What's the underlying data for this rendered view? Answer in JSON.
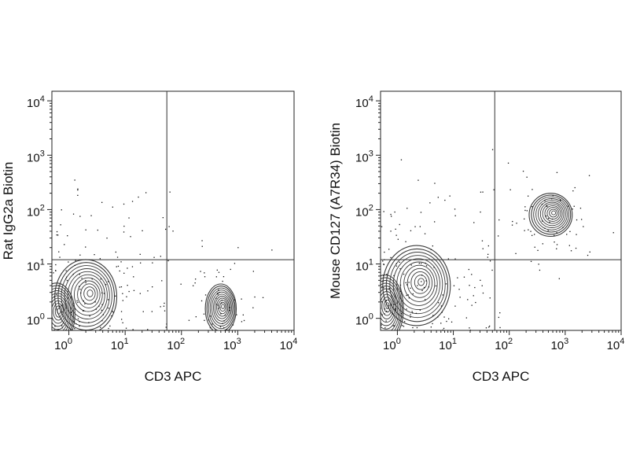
{
  "chart_data": [
    {
      "type": "scatter",
      "subtype": "flow cytometry contour plot with quadrant gates",
      "title": "",
      "xlabel": "CD3 APC",
      "ylabel": "Rat IgG2a Biotin",
      "x_scale": "log",
      "y_scale": "log",
      "xlim": [
        0.5,
        10000
      ],
      "ylim": [
        0.6,
        15000
      ],
      "x_tick_labels": [
        "10^0",
        "10^1",
        "10^2",
        "10^3",
        "10^4"
      ],
      "y_tick_labels": [
        "10^0",
        "10^1",
        "10^2",
        "10^3",
        "10^4"
      ],
      "x_ticks": [
        1,
        10,
        100,
        1000,
        10000
      ],
      "y_ticks": [
        1,
        10,
        100,
        1000,
        10000
      ],
      "gate": {
        "x": 55,
        "y": 12
      },
      "populations": [
        {
          "x": 2,
          "y": 2.5,
          "spread": [
            1.0,
            1.2
          ]
        },
        {
          "x": 0.6,
          "y": 1.2,
          "spread": [
            0.6,
            1.0
          ]
        },
        {
          "x": 500,
          "y": 1.5,
          "spread": [
            0.5,
            0.8
          ]
        }
      ]
    },
    {
      "type": "scatter",
      "subtype": "flow cytometry contour plot with quadrant gates",
      "title": "",
      "xlabel": "CD3 APC",
      "ylabel": "Mouse CD127 (A7R34) Biotin",
      "x_scale": "log",
      "y_scale": "log",
      "xlim": [
        0.5,
        10000
      ],
      "ylim": [
        0.6,
        15000
      ],
      "x_tick_labels": [
        "10^0",
        "10^1",
        "10^2",
        "10^3",
        "10^4"
      ],
      "y_tick_labels": [
        "10^0",
        "10^1",
        "10^2",
        "10^3",
        "10^4"
      ],
      "x_ticks": [
        1,
        10,
        100,
        1000,
        10000
      ],
      "y_ticks": [
        1,
        10,
        100,
        1000,
        10000
      ],
      "gate": {
        "x": 55,
        "y": 12
      },
      "populations": [
        {
          "x": 2.2,
          "y": 4,
          "spread": [
            1.1,
            1.3
          ]
        },
        {
          "x": 0.6,
          "y": 1.5,
          "spread": [
            0.6,
            1.1
          ]
        },
        {
          "x": 550,
          "y": 80,
          "spread": [
            0.7,
            0.7
          ]
        }
      ]
    }
  ]
}
